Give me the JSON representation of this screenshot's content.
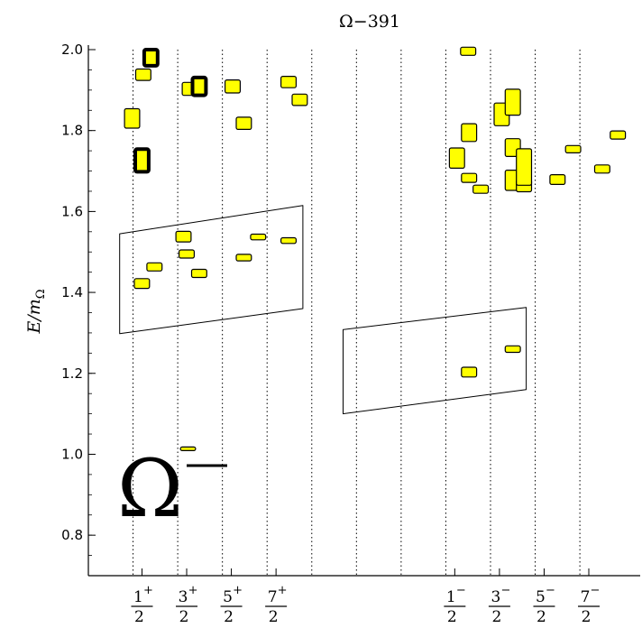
{
  "chart_data": {
    "type": "scatter",
    "title": "Ω−391",
    "ylabel": "E/mΩ",
    "ylim": [
      0.7,
      2.0
    ],
    "yticks": [
      "0.8",
      "1.0",
      "1.2",
      "1.4",
      "1.6",
      "1.8",
      "2.0"
    ],
    "grid": false,
    "annotation": "Ω⁻",
    "categories": [
      {
        "num": "1",
        "sign": "+",
        "den": "2"
      },
      {
        "num": "3",
        "sign": "+",
        "den": "2"
      },
      {
        "num": "5",
        "sign": "+",
        "den": "2"
      },
      {
        "num": "7",
        "sign": "+",
        "den": "2"
      },
      {
        "num": "1",
        "sign": "−",
        "den": "2"
      },
      {
        "num": "3",
        "sign": "−",
        "den": "2"
      },
      {
        "num": "5",
        "sign": "−",
        "den": "2"
      },
      {
        "num": "7",
        "sign": "−",
        "den": "2"
      }
    ],
    "levels": [
      {
        "x": 0.98,
        "w": 0.34,
        "e": 1.83,
        "err": 0.024,
        "bold": false
      },
      {
        "x": 1.23,
        "w": 0.34,
        "e": 1.938,
        "err": 0.014,
        "bold": false
      },
      {
        "x": 1.4,
        "w": 0.3,
        "e": 1.98,
        "err": 0.02,
        "bold": true
      },
      {
        "x": 1.2,
        "w": 0.3,
        "e": 1.726,
        "err": 0.028,
        "bold": true
      },
      {
        "x": 1.2,
        "w": 0.34,
        "e": 1.422,
        "err": 0.012,
        "bold": false
      },
      {
        "x": 1.48,
        "w": 0.34,
        "e": 1.463,
        "err": 0.01,
        "bold": false
      },
      {
        "x": 2.13,
        "w": 0.34,
        "e": 1.538,
        "err": 0.013,
        "bold": false
      },
      {
        "x": 2.2,
        "w": 0.34,
        "e": 1.495,
        "err": 0.01,
        "bold": false
      },
      {
        "x": 2.23,
        "w": 0.34,
        "e": 1.014,
        "err": 0.004,
        "bold": false
      },
      {
        "x": 2.27,
        "w": 0.34,
        "e": 1.903,
        "err": 0.016,
        "bold": false
      },
      {
        "x": 2.48,
        "w": 0.34,
        "e": 1.447,
        "err": 0.01,
        "bold": false
      },
      {
        "x": 2.48,
        "w": 0.3,
        "e": 1.909,
        "err": 0.022,
        "bold": true
      },
      {
        "x": 3.23,
        "w": 0.34,
        "e": 1.909,
        "err": 0.016,
        "bold": false
      },
      {
        "x": 3.48,
        "w": 0.34,
        "e": 1.818,
        "err": 0.015,
        "bold": false
      },
      {
        "x": 3.48,
        "w": 0.34,
        "e": 1.486,
        "err": 0.008,
        "bold": false
      },
      {
        "x": 3.8,
        "w": 0.34,
        "e": 1.537,
        "err": 0.007,
        "bold": false
      },
      {
        "x": 4.48,
        "w": 0.34,
        "e": 1.92,
        "err": 0.014,
        "bold": false
      },
      {
        "x": 4.73,
        "w": 0.34,
        "e": 1.876,
        "err": 0.014,
        "bold": false
      },
      {
        "x": 4.48,
        "w": 0.34,
        "e": 1.528,
        "err": 0.007,
        "bold": false
      },
      {
        "x": 8.25,
        "w": 0.34,
        "e": 1.732,
        "err": 0.025,
        "bold": false
      },
      {
        "x": 8.5,
        "w": 0.34,
        "e": 1.996,
        "err": 0.01,
        "bold": false
      },
      {
        "x": 8.52,
        "w": 0.34,
        "e": 1.795,
        "err": 0.022,
        "bold": false
      },
      {
        "x": 8.52,
        "w": 0.34,
        "e": 1.683,
        "err": 0.011,
        "bold": false
      },
      {
        "x": 8.52,
        "w": 0.34,
        "e": 1.203,
        "err": 0.012,
        "bold": false
      },
      {
        "x": 8.78,
        "w": 0.34,
        "e": 1.655,
        "err": 0.01,
        "bold": false
      },
      {
        "x": 9.25,
        "w": 0.34,
        "e": 1.84,
        "err": 0.028,
        "bold": false
      },
      {
        "x": 9.5,
        "w": 0.34,
        "e": 1.87,
        "err": 0.032,
        "bold": false
      },
      {
        "x": 9.5,
        "w": 0.34,
        "e": 1.758,
        "err": 0.022,
        "bold": false
      },
      {
        "x": 9.5,
        "w": 0.34,
        "e": 1.677,
        "err": 0.025,
        "bold": false
      },
      {
        "x": 9.5,
        "w": 0.34,
        "e": 1.26,
        "err": 0.008,
        "bold": false
      },
      {
        "x": 9.75,
        "w": 0.34,
        "e": 1.664,
        "err": 0.015,
        "bold": false
      },
      {
        "x": 9.75,
        "w": 0.34,
        "e": 1.71,
        "err": 0.045,
        "bold": false
      },
      {
        "x": 10.5,
        "w": 0.34,
        "e": 1.679,
        "err": 0.012,
        "bold": false
      },
      {
        "x": 10.85,
        "w": 0.34,
        "e": 1.754,
        "err": 0.009,
        "bold": false
      },
      {
        "x": 11.5,
        "w": 0.34,
        "e": 1.705,
        "err": 0.01,
        "bold": false
      },
      {
        "x": 11.85,
        "w": 0.34,
        "e": 1.789,
        "err": 0.01,
        "bold": false
      }
    ],
    "regions": [
      {
        "corners": [
          [
            0.7,
            1.545
          ],
          [
            4.8,
            1.615
          ],
          [
            4.8,
            1.36
          ],
          [
            0.7,
            1.298
          ]
        ]
      },
      {
        "corners": [
          [
            5.7,
            1.308
          ],
          [
            9.8,
            1.363
          ],
          [
            9.8,
            1.16
          ],
          [
            5.7,
            1.1
          ]
        ]
      }
    ]
  }
}
